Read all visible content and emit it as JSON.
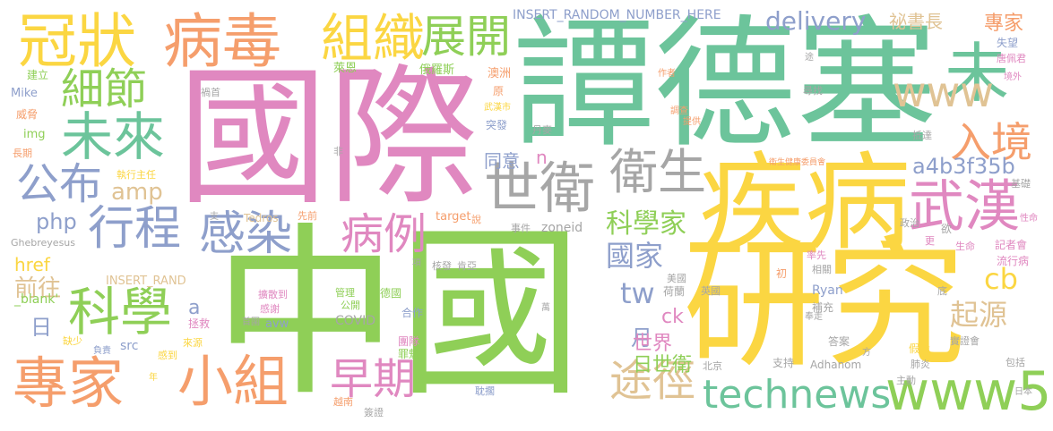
{
  "palette": {
    "green": "#8fcf57",
    "teal": "#6cc49b",
    "yellow": "#fbd642",
    "pink": "#e088c0",
    "orange": "#f59e6c",
    "gray": "#a6a6a6",
    "tan": "#e0c394",
    "slate": "#8e9fcb"
  },
  "words": [
    {
      "id": "w-guoji",
      "text": "國際"
    },
    {
      "id": "w-tandesai",
      "text": "譚德塞"
    },
    {
      "id": "w-zhongguo",
      "text": "中國"
    },
    {
      "id": "w-yanjiu",
      "text": "研究"
    },
    {
      "id": "w-jibing",
      "text": "疾病"
    },
    {
      "id": "w-guanzhuang",
      "text": "冠狀"
    },
    {
      "id": "w-bingdu",
      "text": "病毒"
    },
    {
      "id": "w-zuzhi",
      "text": "組織"
    },
    {
      "id": "w-zhankai",
      "text": "展開"
    },
    {
      "id": "w-wei",
      "text": "未"
    },
    {
      "id": "w-xijie",
      "text": "細節"
    },
    {
      "id": "w-weilai",
      "text": "未來"
    },
    {
      "id": "w-shiwei",
      "text": "世衛"
    },
    {
      "id": "w-weisheng",
      "text": "衛生"
    },
    {
      "id": "w-gongbu",
      "text": "公布"
    },
    {
      "id": "w-wuhan",
      "text": "武漢"
    },
    {
      "id": "w-xingcheng",
      "text": "行程"
    },
    {
      "id": "w-ganran",
      "text": "感染"
    },
    {
      "id": "w-bingli",
      "text": "病例"
    },
    {
      "id": "w-kexue",
      "text": "科學"
    },
    {
      "id": "w-zhuanjia",
      "text": "專家"
    },
    {
      "id": "w-xiaozu",
      "text": "小組"
    },
    {
      "id": "w-zaoqi",
      "text": "早期"
    },
    {
      "id": "w-tujing",
      "text": "途徑"
    },
    {
      "id": "w-technews",
      "text": "technews"
    },
    {
      "id": "w-www5",
      "text": "www5"
    },
    {
      "id": "w-delivery",
      "text": "delivery"
    },
    {
      "id": "w-www",
      "text": "www"
    },
    {
      "id": "w-rujing",
      "text": "入境"
    },
    {
      "id": "w-a4b3f35b",
      "text": "a4b3f35b"
    },
    {
      "id": "w-mishuzhang",
      "text": "祕書長"
    },
    {
      "id": "w-zhuanjia-s",
      "text": "專家"
    },
    {
      "id": "w-insert-random",
      "text": "INSERT_RANDOM_NUMBER_HERE"
    },
    {
      "id": "w-amp",
      "text": "amp"
    },
    {
      "id": "w-php",
      "text": "php"
    },
    {
      "id": "w-kexuejia",
      "text": "科學家"
    },
    {
      "id": "w-guojia",
      "text": "國家"
    },
    {
      "id": "w-tw",
      "text": "tw"
    },
    {
      "id": "w-cb",
      "text": "cb"
    },
    {
      "id": "w-qiyuan",
      "text": "起源"
    },
    {
      "id": "w-qianwang",
      "text": "前往"
    },
    {
      "id": "w-href",
      "text": "href"
    },
    {
      "id": "w-ri",
      "text": "日"
    },
    {
      "id": "w-yue",
      "text": "月"
    },
    {
      "id": "w-shijie",
      "text": "世界"
    },
    {
      "id": "w-rishiwei",
      "text": "日世衛"
    },
    {
      "id": "w-ck",
      "text": "ck"
    },
    {
      "id": "w-n",
      "text": "n"
    },
    {
      "id": "w-tongyi",
      "text": "同意"
    },
    {
      "id": "w-a",
      "text": "a"
    },
    {
      "id": "w-insert-rand",
      "text": "INSERT_RAND"
    },
    {
      "id": "w-blank",
      "text": "_blank'"
    },
    {
      "id": "w-target",
      "text": "target"
    },
    {
      "id": "w-zoneid",
      "text": "zoneid"
    },
    {
      "id": "w-tedros",
      "text": "Tedros"
    },
    {
      "id": "w-ghebreyesus",
      "text": "Ghebreyesus"
    },
    {
      "id": "w-covid",
      "text": "COVID"
    },
    {
      "id": "w-avw",
      "text": "avw"
    },
    {
      "id": "w-src",
      "text": "src"
    },
    {
      "id": "w-ryan",
      "text": "Ryan"
    },
    {
      "id": "w-adhanom",
      "text": "Adhanom"
    },
    {
      "id": "w-mike",
      "text": "Mike"
    },
    {
      "id": "w-img",
      "text": "img"
    },
    {
      "id": "w-laien",
      "text": "萊恩"
    },
    {
      "id": "w-eluosi",
      "text": "俄羅斯"
    },
    {
      "id": "w-aozhou",
      "text": "澳洲"
    },
    {
      "id": "w-wuhanshi",
      "text": "武漢市"
    },
    {
      "id": "w-tufa",
      "text": "突發"
    },
    {
      "id": "w-zhixingzhuren",
      "text": "執行主任"
    },
    {
      "id": "w-weishengweiyuanhui",
      "text": "衛生健康委員會"
    },
    {
      "id": "w-shiwang",
      "text": "失望"
    },
    {
      "id": "w-tangpeijun",
      "text": "唐佩君"
    },
    {
      "id": "w-jingwai",
      "text": "境外"
    },
    {
      "id": "w-xunzhao",
      "text": "尋找"
    },
    {
      "id": "w-dida",
      "text": "抵達"
    },
    {
      "id": "w-jichu",
      "text": "基礎"
    },
    {
      "id": "w-jizhehui",
      "text": "記者會"
    },
    {
      "id": "w-liuxingbing",
      "text": "流行病"
    },
    {
      "id": "w-shiyanhui",
      "text": "實證會"
    },
    {
      "id": "w-baokuo",
      "text": "包括"
    },
    {
      "id": "w-riben",
      "text": "日本"
    },
    {
      "id": "w-feiyan",
      "text": "肺炎"
    },
    {
      "id": "w-zhudong",
      "text": "主動"
    },
    {
      "id": "w-jiashe",
      "text": "假設"
    },
    {
      "id": "w-daan",
      "text": "答案"
    },
    {
      "id": "w-buchong",
      "text": "補充"
    },
    {
      "id": "w-zhichi",
      "text": "支持"
    },
    {
      "id": "w-beijing",
      "text": "北京"
    },
    {
      "id": "w-danwu",
      "text": "耽擱"
    },
    {
      "id": "w-yuenan",
      "text": "越南"
    },
    {
      "id": "w-qianzheng",
      "text": "簽證"
    },
    {
      "id": "w-tuandui",
      "text": "團隊"
    },
    {
      "id": "w-zuikui",
      "text": "罪魁"
    },
    {
      "id": "w-deguo",
      "text": "德國"
    },
    {
      "id": "w-hezuo",
      "text": "合作"
    },
    {
      "id": "w-guanli",
      "text": "管理"
    },
    {
      "id": "w-gongkai",
      "text": "公開"
    },
    {
      "id": "w-kuosandao",
      "text": "擴散到"
    },
    {
      "id": "w-ganxie",
      "text": "感謝"
    },
    {
      "id": "w-shoumian",
      "text": "首圍"
    },
    {
      "id": "w-hejiu",
      "text": "拯救"
    },
    {
      "id": "w-laiyuan",
      "text": "來源"
    },
    {
      "id": "w-gandao",
      "text": "感到"
    },
    {
      "id": "w-queshao",
      "text": "缺少"
    },
    {
      "id": "w-fuze",
      "text": "負責"
    },
    {
      "id": "w-nian",
      "text": "年"
    },
    {
      "id": "w-heyan",
      "text": "核發"
    },
    {
      "id": "w-kenya",
      "text": "肯亞"
    },
    {
      "id": "w-helan",
      "text": "荷蘭"
    },
    {
      "id": "w-meiguo",
      "text": "美國"
    },
    {
      "id": "w-yingguo",
      "text": "英國"
    },
    {
      "id": "w-lvxian",
      "text": "率先"
    },
    {
      "id": "w-xiangguan",
      "text": "相關"
    },
    {
      "id": "w-chu",
      "text": "初"
    },
    {
      "id": "w-qianzou",
      "text": "奉走"
    },
    {
      "id": "w-zhengzhi",
      "text": "政治"
    },
    {
      "id": "w-yu",
      "text": "欲"
    },
    {
      "id": "w-geng",
      "text": "更"
    },
    {
      "id": "w-shengming",
      "text": "生命"
    },
    {
      "id": "w-dizi",
      "text": "底"
    },
    {
      "id": "w-xiangmu",
      "text": "項"
    },
    {
      "id": "w-zhao",
      "text": "找"
    },
    {
      "id": "w-shijian",
      "text": "事件"
    },
    {
      "id": "w-xianqian",
      "text": "先前"
    },
    {
      "id": "w-shuo",
      "text": "說"
    },
    {
      "id": "w-zhi",
      "text": "支"
    },
    {
      "id": "w-danmai",
      "text": "丹麥"
    },
    {
      "id": "w-fei",
      "text": "非"
    },
    {
      "id": "w-changqi",
      "text": "長期"
    },
    {
      "id": "w-weixie",
      "text": "威脅"
    },
    {
      "id": "w-jianli",
      "text": "建立"
    },
    {
      "id": "w-wanshou",
      "text": "禍首"
    },
    {
      "id": "w-yuan",
      "text": "原"
    },
    {
      "id": "w-zuozhe",
      "text": "作者"
    },
    {
      "id": "w-tu",
      "text": "途"
    },
    {
      "id": "w-diaocha",
      "text": "調查"
    },
    {
      "id": "w-tigong",
      "text": "提供"
    },
    {
      "id": "w-xingming",
      "text": "性命"
    },
    {
      "id": "w-fang",
      "text": "方"
    },
    {
      "id": "w-wan",
      "text": "萬"
    }
  ]
}
